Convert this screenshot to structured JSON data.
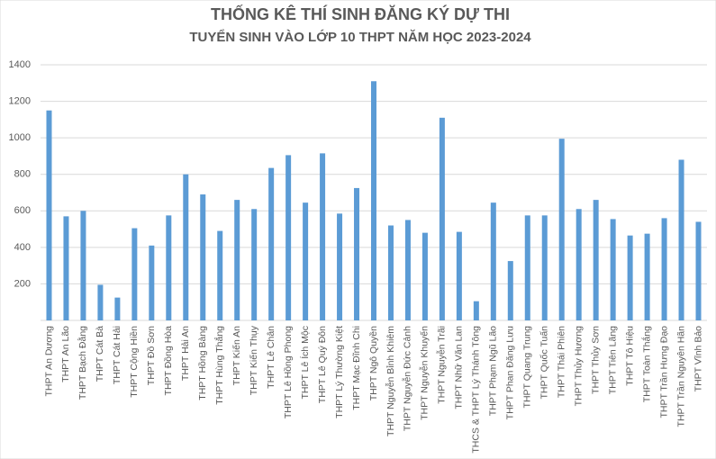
{
  "chart_data": {
    "type": "bar",
    "title": "THỐNG KÊ THÍ SINH ĐĂNG KÝ DỰ THI",
    "subtitle": "TUYỂN SINH VÀO LỚP 10 THPT NĂM HỌC 2023-2024",
    "categories": [
      "THPT An Dương",
      "THPT An Lão",
      "THPT Bạch Đằng",
      "THPT Cát Bà",
      "THPT Cát Hải",
      "THPT Cộng Hiền",
      "THPT Đồ Sơn",
      "THPT Đồng Hòa",
      "THPT Hải An",
      "THPT Hồng Bàng",
      "THPT Hùng Thắng",
      "THPT Kiến An",
      "THPT Kiến Thụy",
      "THPT Lê Chân",
      "THPT Lê Hồng Phong",
      "THPT Lê Ích Mộc",
      "THPT Lê Quý Đôn",
      "THPT Lý Thường Kiệt",
      "THPT Mạc Đĩnh Chi",
      "THPT Ngô Quyền",
      "THPT Nguyễn Bỉnh Khiêm",
      "THPT Nguyễn Đức Cảnh",
      "THPT Nguyễn Khuyến",
      "THPT Nguyễn Trãi",
      "THPT Nhữ Văn Lan",
      "THCS & THPT Lý Thánh Tông",
      "THPT Phạm Ngũ Lão",
      "THPT Phan Đăng Lưu",
      "THPT Quang Trung",
      "THPT Quốc Tuấn",
      "THPT Thái Phiên",
      "THPT Thủy Hương",
      "THPT Thủy Sơn",
      "THPT Tiên Lãng",
      "THPT Tô Hiệu",
      "THPT Toàn Thắng",
      "THPT Trần Hưng Đạo",
      "THPT Trần Nguyên Hãn",
      "THPT Vĩnh Bảo"
    ],
    "values": [
      1150,
      570,
      600,
      195,
      125,
      505,
      410,
      575,
      800,
      690,
      490,
      660,
      610,
      835,
      905,
      645,
      915,
      585,
      725,
      1310,
      520,
      550,
      480,
      1110,
      485,
      105,
      645,
      325,
      575,
      575,
      995,
      610,
      660,
      555,
      465,
      475,
      560,
      880,
      540
    ],
    "color": "#5b9bd5",
    "ylim": [
      0,
      1400
    ],
    "yticks": [
      200,
      400,
      600,
      800,
      1000,
      1200,
      1400
    ],
    "grid": true
  }
}
